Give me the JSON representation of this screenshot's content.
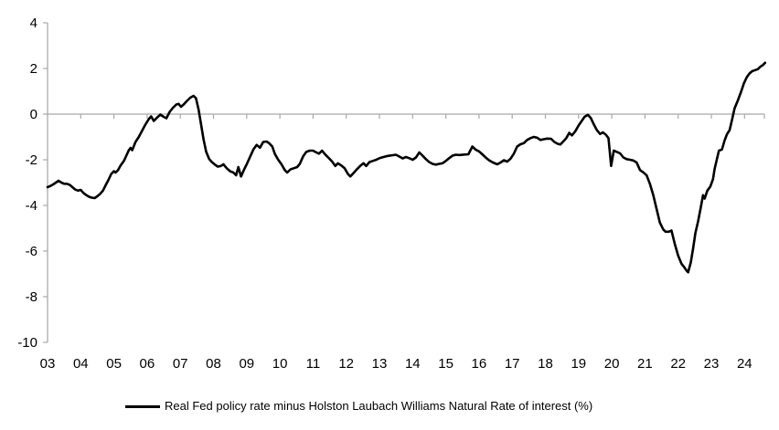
{
  "chart_data": {
    "type": "line",
    "title": "",
    "legend": "Real Fed policy rate minus Holston Laubach Williams Natural Rate of interest (%)",
    "legend_position": "bottom",
    "xlabel": "",
    "ylabel": "",
    "ylim": [
      -10,
      4
    ],
    "xlim": [
      2003,
      2024.65
    ],
    "y_ticks": [
      4,
      2,
      0,
      -2,
      -4,
      -6,
      -8,
      -10
    ],
    "x_tick_labels": [
      "03",
      "04",
      "05",
      "06",
      "07",
      "08",
      "09",
      "10",
      "11",
      "12",
      "13",
      "14",
      "15",
      "16",
      "17",
      "18",
      "19",
      "20",
      "21",
      "22",
      "23",
      "24"
    ],
    "grid": "zero-line-only",
    "axis_color": "#a9a9a9",
    "text_color": "#000000",
    "series": [
      {
        "name": "Real Fed policy rate minus Holston Laubach Williams Natural Rate of interest (%)",
        "color": "#000000",
        "points": [
          [
            2003.0,
            -3.2
          ],
          [
            2003.08,
            -3.15
          ],
          [
            2003.17,
            -3.08
          ],
          [
            2003.25,
            -3.0
          ],
          [
            2003.33,
            -2.92
          ],
          [
            2003.42,
            -3.0
          ],
          [
            2003.5,
            -3.05
          ],
          [
            2003.58,
            -3.05
          ],
          [
            2003.67,
            -3.1
          ],
          [
            2003.75,
            -3.2
          ],
          [
            2003.83,
            -3.3
          ],
          [
            2003.92,
            -3.35
          ],
          [
            2004.0,
            -3.32
          ],
          [
            2004.08,
            -3.45
          ],
          [
            2004.17,
            -3.55
          ],
          [
            2004.25,
            -3.62
          ],
          [
            2004.33,
            -3.66
          ],
          [
            2004.42,
            -3.68
          ],
          [
            2004.5,
            -3.6
          ],
          [
            2004.58,
            -3.5
          ],
          [
            2004.67,
            -3.35
          ],
          [
            2004.75,
            -3.12
          ],
          [
            2004.83,
            -2.9
          ],
          [
            2004.92,
            -2.62
          ],
          [
            2005.0,
            -2.5
          ],
          [
            2005.05,
            -2.56
          ],
          [
            2005.12,
            -2.46
          ],
          [
            2005.2,
            -2.25
          ],
          [
            2005.3,
            -2.05
          ],
          [
            2005.38,
            -1.8
          ],
          [
            2005.45,
            -1.58
          ],
          [
            2005.5,
            -1.48
          ],
          [
            2005.55,
            -1.58
          ],
          [
            2005.65,
            -1.22
          ],
          [
            2005.75,
            -1.0
          ],
          [
            2005.85,
            -0.72
          ],
          [
            2005.95,
            -0.45
          ],
          [
            2006.05,
            -0.22
          ],
          [
            2006.12,
            -0.1
          ],
          [
            2006.2,
            -0.3
          ],
          [
            2006.3,
            -0.15
          ],
          [
            2006.4,
            -0.02
          ],
          [
            2006.5,
            -0.12
          ],
          [
            2006.58,
            -0.18
          ],
          [
            2006.68,
            0.1
          ],
          [
            2006.78,
            0.28
          ],
          [
            2006.88,
            0.42
          ],
          [
            2006.95,
            0.45
          ],
          [
            2007.02,
            0.32
          ],
          [
            2007.1,
            0.42
          ],
          [
            2007.2,
            0.58
          ],
          [
            2007.3,
            0.72
          ],
          [
            2007.4,
            0.8
          ],
          [
            2007.47,
            0.7
          ],
          [
            2007.55,
            0.2
          ],
          [
            2007.62,
            -0.4
          ],
          [
            2007.7,
            -1.1
          ],
          [
            2007.78,
            -1.65
          ],
          [
            2007.87,
            -1.97
          ],
          [
            2007.95,
            -2.1
          ],
          [
            2008.05,
            -2.22
          ],
          [
            2008.13,
            -2.3
          ],
          [
            2008.22,
            -2.27
          ],
          [
            2008.3,
            -2.2
          ],
          [
            2008.4,
            -2.37
          ],
          [
            2008.5,
            -2.5
          ],
          [
            2008.6,
            -2.56
          ],
          [
            2008.68,
            -2.68
          ],
          [
            2008.75,
            -2.32
          ],
          [
            2008.83,
            -2.73
          ],
          [
            2008.93,
            -2.4
          ],
          [
            2009.0,
            -2.2
          ],
          [
            2009.1,
            -1.88
          ],
          [
            2009.2,
            -1.55
          ],
          [
            2009.3,
            -1.35
          ],
          [
            2009.4,
            -1.47
          ],
          [
            2009.5,
            -1.22
          ],
          [
            2009.6,
            -1.2
          ],
          [
            2009.68,
            -1.28
          ],
          [
            2009.77,
            -1.42
          ],
          [
            2009.85,
            -1.75
          ],
          [
            2009.95,
            -2.0
          ],
          [
            2010.05,
            -2.2
          ],
          [
            2010.15,
            -2.45
          ],
          [
            2010.22,
            -2.56
          ],
          [
            2010.32,
            -2.42
          ],
          [
            2010.42,
            -2.37
          ],
          [
            2010.52,
            -2.32
          ],
          [
            2010.6,
            -2.18
          ],
          [
            2010.7,
            -1.85
          ],
          [
            2010.8,
            -1.65
          ],
          [
            2010.9,
            -1.6
          ],
          [
            2011.0,
            -1.6
          ],
          [
            2011.1,
            -1.68
          ],
          [
            2011.18,
            -1.73
          ],
          [
            2011.27,
            -1.6
          ],
          [
            2011.37,
            -1.77
          ],
          [
            2011.47,
            -1.92
          ],
          [
            2011.57,
            -2.07
          ],
          [
            2011.67,
            -2.27
          ],
          [
            2011.75,
            -2.15
          ],
          [
            2011.85,
            -2.25
          ],
          [
            2011.95,
            -2.37
          ],
          [
            2012.05,
            -2.62
          ],
          [
            2012.12,
            -2.73
          ],
          [
            2012.22,
            -2.58
          ],
          [
            2012.32,
            -2.42
          ],
          [
            2012.42,
            -2.27
          ],
          [
            2012.52,
            -2.15
          ],
          [
            2012.6,
            -2.27
          ],
          [
            2012.7,
            -2.1
          ],
          [
            2012.8,
            -2.05
          ],
          [
            2012.9,
            -2.0
          ],
          [
            2013.0,
            -1.93
          ],
          [
            2013.12,
            -1.88
          ],
          [
            2013.25,
            -1.83
          ],
          [
            2013.4,
            -1.8
          ],
          [
            2013.5,
            -1.78
          ],
          [
            2013.6,
            -1.86
          ],
          [
            2013.7,
            -1.94
          ],
          [
            2013.8,
            -1.88
          ],
          [
            2013.9,
            -1.93
          ],
          [
            2014.0,
            -2.0
          ],
          [
            2014.1,
            -1.9
          ],
          [
            2014.2,
            -1.68
          ],
          [
            2014.3,
            -1.82
          ],
          [
            2014.4,
            -1.97
          ],
          [
            2014.5,
            -2.1
          ],
          [
            2014.6,
            -2.18
          ],
          [
            2014.7,
            -2.21
          ],
          [
            2014.8,
            -2.18
          ],
          [
            2014.9,
            -2.15
          ],
          [
            2015.0,
            -2.05
          ],
          [
            2015.1,
            -1.93
          ],
          [
            2015.2,
            -1.82
          ],
          [
            2015.3,
            -1.78
          ],
          [
            2015.42,
            -1.79
          ],
          [
            2015.55,
            -1.77
          ],
          [
            2015.68,
            -1.76
          ],
          [
            2015.8,
            -1.42
          ],
          [
            2015.9,
            -1.56
          ],
          [
            2016.0,
            -1.63
          ],
          [
            2016.1,
            -1.76
          ],
          [
            2016.2,
            -1.9
          ],
          [
            2016.3,
            -2.02
          ],
          [
            2016.42,
            -2.12
          ],
          [
            2016.55,
            -2.2
          ],
          [
            2016.65,
            -2.12
          ],
          [
            2016.75,
            -2.02
          ],
          [
            2016.85,
            -2.08
          ],
          [
            2016.95,
            -1.95
          ],
          [
            2017.05,
            -1.73
          ],
          [
            2017.15,
            -1.42
          ],
          [
            2017.25,
            -1.32
          ],
          [
            2017.35,
            -1.27
          ],
          [
            2017.45,
            -1.13
          ],
          [
            2017.55,
            -1.05
          ],
          [
            2017.65,
            -1.0
          ],
          [
            2017.75,
            -1.03
          ],
          [
            2017.85,
            -1.13
          ],
          [
            2017.95,
            -1.1
          ],
          [
            2018.05,
            -1.07
          ],
          [
            2018.17,
            -1.08
          ],
          [
            2018.27,
            -1.22
          ],
          [
            2018.37,
            -1.3
          ],
          [
            2018.45,
            -1.33
          ],
          [
            2018.55,
            -1.18
          ],
          [
            2018.63,
            -1.05
          ],
          [
            2018.72,
            -0.82
          ],
          [
            2018.8,
            -0.93
          ],
          [
            2018.9,
            -0.75
          ],
          [
            2019.0,
            -0.5
          ],
          [
            2019.08,
            -0.33
          ],
          [
            2019.18,
            -0.12
          ],
          [
            2019.28,
            -0.03
          ],
          [
            2019.37,
            -0.17
          ],
          [
            2019.45,
            -0.42
          ],
          [
            2019.55,
            -0.7
          ],
          [
            2019.65,
            -0.87
          ],
          [
            2019.73,
            -0.8
          ],
          [
            2019.82,
            -0.9
          ],
          [
            2019.9,
            -1.05
          ],
          [
            2019.98,
            -2.27
          ],
          [
            2020.06,
            -1.6
          ],
          [
            2020.15,
            -1.65
          ],
          [
            2020.25,
            -1.72
          ],
          [
            2020.35,
            -1.9
          ],
          [
            2020.45,
            -1.97
          ],
          [
            2020.55,
            -2.0
          ],
          [
            2020.65,
            -2.03
          ],
          [
            2020.75,
            -2.12
          ],
          [
            2020.85,
            -2.45
          ],
          [
            2020.95,
            -2.55
          ],
          [
            2021.05,
            -2.68
          ],
          [
            2021.15,
            -3.05
          ],
          [
            2021.25,
            -3.55
          ],
          [
            2021.35,
            -4.15
          ],
          [
            2021.45,
            -4.75
          ],
          [
            2021.55,
            -5.05
          ],
          [
            2021.62,
            -5.15
          ],
          [
            2021.72,
            -5.15
          ],
          [
            2021.8,
            -5.1
          ],
          [
            2021.9,
            -5.7
          ],
          [
            2022.0,
            -6.2
          ],
          [
            2022.1,
            -6.55
          ],
          [
            2022.18,
            -6.7
          ],
          [
            2022.25,
            -6.85
          ],
          [
            2022.3,
            -6.93
          ],
          [
            2022.38,
            -6.5
          ],
          [
            2022.45,
            -5.9
          ],
          [
            2022.52,
            -5.2
          ],
          [
            2022.6,
            -4.7
          ],
          [
            2022.68,
            -4.1
          ],
          [
            2022.75,
            -3.55
          ],
          [
            2022.8,
            -3.7
          ],
          [
            2022.88,
            -3.35
          ],
          [
            2022.97,
            -3.17
          ],
          [
            2023.05,
            -2.85
          ],
          [
            2023.1,
            -2.4
          ],
          [
            2023.17,
            -1.95
          ],
          [
            2023.23,
            -1.6
          ],
          [
            2023.32,
            -1.55
          ],
          [
            2023.4,
            -1.15
          ],
          [
            2023.47,
            -0.88
          ],
          [
            2023.55,
            -0.7
          ],
          [
            2023.63,
            -0.2
          ],
          [
            2023.7,
            0.25
          ],
          [
            2023.8,
            0.6
          ],
          [
            2023.9,
            1.0
          ],
          [
            2023.98,
            1.35
          ],
          [
            2024.07,
            1.62
          ],
          [
            2024.15,
            1.78
          ],
          [
            2024.23,
            1.88
          ],
          [
            2024.32,
            1.93
          ],
          [
            2024.4,
            1.97
          ],
          [
            2024.48,
            2.08
          ],
          [
            2024.55,
            2.15
          ],
          [
            2024.62,
            2.25
          ]
        ]
      }
    ]
  }
}
